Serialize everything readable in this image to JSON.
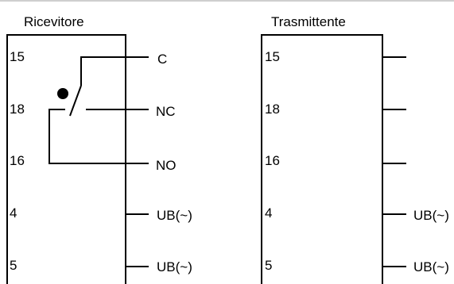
{
  "receiver": {
    "title": "Ricevitore",
    "pins": [
      "15",
      "18",
      "16",
      "4",
      "5"
    ],
    "outputs": [
      "C",
      "NC",
      "NO",
      "UB(~)",
      "UB(~)"
    ]
  },
  "transmitter": {
    "title": "Trasmittente",
    "pins": [
      "15",
      "18",
      "16",
      "4",
      "5"
    ],
    "outputs": [
      "",
      "",
      "",
      "UB(~)",
      "UB(~)"
    ]
  },
  "colors": {
    "line": "#000000",
    "background": "#ffffff",
    "top_rule": "#cfcfcf"
  }
}
